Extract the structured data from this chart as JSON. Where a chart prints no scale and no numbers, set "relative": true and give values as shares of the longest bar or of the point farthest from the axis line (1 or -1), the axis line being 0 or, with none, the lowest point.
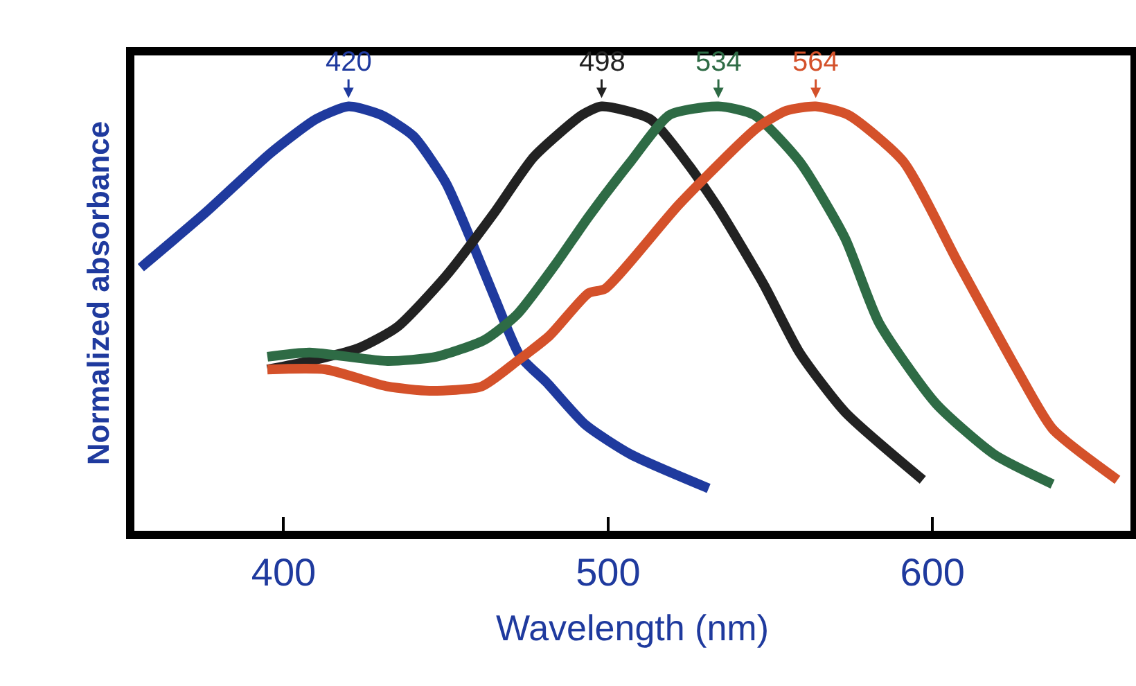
{
  "chart_data": {
    "type": "line",
    "relative": true,
    "xlabel": "Wavelength (nm)",
    "ylabel": "Normalized absorbance",
    "xlim": [
      354,
      661
    ],
    "xticks": [
      400,
      500,
      600
    ],
    "grid": false,
    "marker": "none",
    "line_style": "solid",
    "series": [
      {
        "color": "#1f3a9e",
        "x": [
          356,
          376,
          396,
          410,
          420,
          430,
          440,
          450,
          457.5,
          465,
          473,
          481,
          493,
          507,
          531
        ],
        "values": [
          0.62,
          0.75,
          0.89,
          0.97,
          1.0,
          0.98,
          0.93,
          0.82,
          0.69,
          0.55,
          0.41,
          0.35,
          0.25,
          0.18,
          0.1
        ]
      },
      {
        "color": "#222222",
        "x": [
          395,
          408,
          423,
          435,
          450,
          465,
          477,
          492,
          498,
          513,
          525,
          534,
          548,
          559,
          573,
          597
        ],
        "values": [
          0.38,
          0.4,
          0.43,
          0.48,
          0.6,
          0.75,
          0.88,
          0.98,
          1.0,
          0.97,
          0.86,
          0.76,
          0.58,
          0.42,
          0.28,
          0.12
        ]
      },
      {
        "color": "#2e6b45",
        "x": [
          395,
          408,
          432,
          447,
          462,
          472,
          484,
          494,
          507,
          519,
          534,
          545,
          559,
          573,
          583.5,
          601,
          619,
          637
        ],
        "values": [
          0.41,
          0.42,
          0.4,
          0.41,
          0.45,
          0.51,
          0.63,
          0.74,
          0.87,
          0.98,
          1.0,
          0.98,
          0.87,
          0.69,
          0.49,
          0.3,
          0.18,
          0.11
        ]
      },
      {
        "color": "#d4512a",
        "x": [
          395,
          413,
          432,
          445,
          461,
          472,
          482,
          494,
          499,
          522,
          546,
          555,
          564,
          574,
          591,
          608,
          626,
          637,
          657
        ],
        "values": [
          0.38,
          0.38,
          0.34,
          0.33,
          0.34,
          0.4,
          0.46,
          0.56,
          0.57,
          0.77,
          0.95,
          0.99,
          1.0,
          0.98,
          0.87,
          0.63,
          0.38,
          0.24,
          0.12
        ]
      }
    ],
    "annotations": [
      {
        "text": "420",
        "x": 420,
        "y": 1.0
      },
      {
        "text": "498",
        "x": 498,
        "y": 1.0
      },
      {
        "text": "534",
        "x": 534,
        "y": 1.0
      },
      {
        "text": "564",
        "x": 564,
        "y": 1.0
      }
    ]
  }
}
